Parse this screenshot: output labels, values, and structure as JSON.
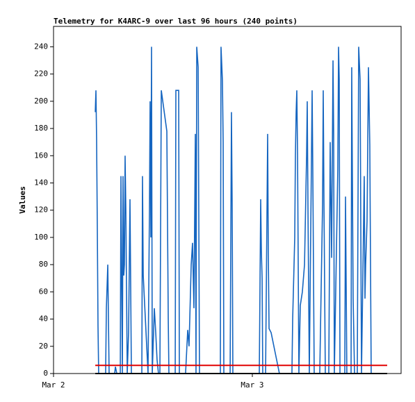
{
  "chart_data": {
    "type": "line",
    "title": "Telemetry for K4ARC-9 over last 96 hours (240 points)",
    "y_label": "Values",
    "xlim": [
      0,
      41.96
    ],
    "xticks": [
      {
        "value": 0,
        "label": "Mar 2"
      },
      {
        "value": 24,
        "label": "Mar 3"
      }
    ],
    "ylim": [
      0,
      255
    ],
    "yticks": [
      0,
      20,
      40,
      60,
      80,
      100,
      120,
      140,
      160,
      180,
      200,
      220,
      240
    ],
    "series": [
      {
        "color": "#1565c0",
        "x": [
          5.04,
          5.12,
          5.2,
          5.29,
          5.37,
          5.45,
          6.29,
          6.38,
          6.55,
          6.63,
          6.71,
          7.38,
          7.47,
          7.64,
          8.06,
          8.14,
          8.22,
          8.31,
          8.39,
          8.48,
          8.56,
          8.64,
          8.73,
          8.9,
          9.06,
          9.23,
          9.4,
          10.66,
          10.74,
          10.83,
          11.41,
          11.58,
          11.66,
          11.75,
          11.83,
          11.92,
          12.17,
          12.34,
          12.5,
          12.67,
          12.84,
          13.01,
          13.68,
          13.85,
          13.93,
          14.69,
          14.77,
          15.11,
          15.19,
          15.94,
          16.2,
          16.36,
          16.62,
          16.78,
          16.95,
          17.12,
          17.2,
          17.29,
          17.46,
          17.54,
          17.62,
          20.14,
          20.22,
          20.39,
          20.48,
          20.56,
          21.32,
          21.48,
          21.57,
          21.65,
          24.84,
          25.01,
          25.09,
          25.18,
          25.26,
          25.6,
          25.85,
          25.93,
          26.02,
          26.27,
          27.27,
          28.78,
          28.87,
          29.12,
          29.2,
          29.29,
          29.37,
          29.46,
          29.62,
          29.79,
          30.04,
          30.3,
          30.55,
          30.63,
          30.72,
          30.88,
          31.22,
          31.3,
          31.47,
          32.14,
          32.48,
          32.56,
          32.65,
          32.81,
          33.23,
          33.4,
          33.57,
          33.74,
          33.82,
          33.9,
          34.32,
          34.41,
          34.49,
          34.58,
          35.16,
          35.25,
          35.41,
          35.92,
          36.0,
          36.17,
          36.34,
          36.67,
          36.84,
          37.01,
          37.18,
          37.51,
          37.6,
          37.68,
          37.85,
          38.02,
          38.18,
          38.35
        ],
        "values": [
          192,
          208,
          172,
          104,
          35,
          0,
          0,
          48,
          80,
          40,
          0,
          0,
          5,
          0,
          0,
          145,
          72,
          0,
          145,
          72,
          80,
          160,
          120,
          0,
          30,
          128,
          0,
          0,
          145,
          72,
          0,
          120,
          200,
          100,
          240,
          0,
          48,
          30,
          10,
          0,
          0,
          208,
          178,
          40,
          0,
          0,
          208,
          208,
          0,
          0,
          32,
          20,
          80,
          96,
          48,
          176,
          0,
          240,
          225,
          112,
          0,
          0,
          240,
          215,
          170,
          0,
          0,
          192,
          120,
          0,
          0,
          128,
          90,
          70,
          0,
          0,
          176,
          88,
          33,
          30,
          0,
          0,
          40,
          100,
          160,
          192,
          208,
          160,
          0,
          50,
          60,
          80,
          160,
          200,
          120,
          0,
          208,
          150,
          0,
          0,
          125,
          208,
          125,
          0,
          0,
          170,
          85,
          230,
          176,
          0,
          150,
          240,
          216,
          0,
          0,
          130,
          0,
          0,
          225,
          55,
          0,
          0,
          240,
          216,
          0,
          145,
          55,
          80,
          112,
          225,
          168,
          0
        ]
      },
      {
        "color": "#e00000",
        "x": [
          5.04,
          40.28
        ],
        "values": [
          6,
          6
        ]
      },
      {
        "color": "#000000",
        "x": [
          5.04,
          40.28
        ],
        "values": [
          0,
          0
        ]
      }
    ]
  }
}
